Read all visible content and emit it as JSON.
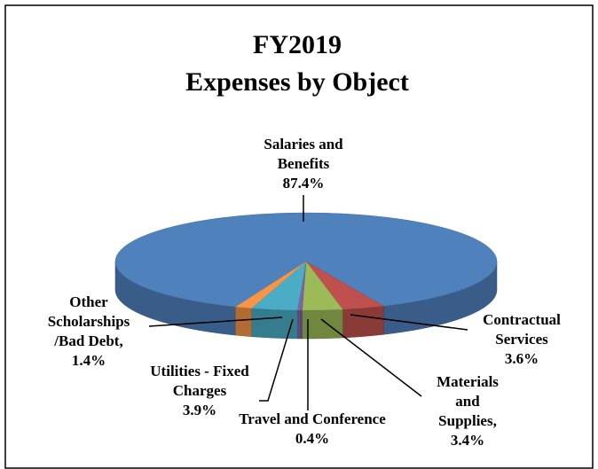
{
  "chart_data": {
    "type": "pie3d",
    "title": [
      "FY2019",
      "Expenses by Object"
    ],
    "categories": [
      "Salaries and Benefits",
      "Contractual Services",
      "Materials and Supplies,",
      "Travel and Conference",
      "Utilities - Fixed Charges",
      "Other Scholarships /Bad Debt,"
    ],
    "values": [
      87.4,
      3.6,
      3.4,
      0.4,
      3.9,
      1.4
    ],
    "value_labels": [
      "87.4%",
      "3.6%",
      "3.4%",
      "0.4%",
      "3.9%",
      "1.4%"
    ],
    "colors": [
      "#4f81bd",
      "#c0504d",
      "#9bbb59",
      "#8064a2",
      "#4bacc6",
      "#f79646"
    ]
  }
}
